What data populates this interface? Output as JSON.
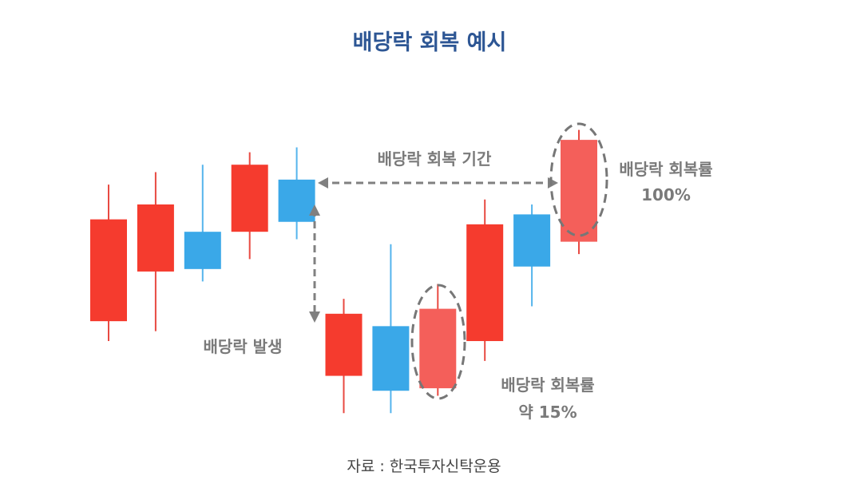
{
  "chart_data": {
    "type": "candlestick",
    "title": "배당락 회복 예시",
    "xlabel": "",
    "ylabel": "",
    "ylim": [
      0,
      100
    ],
    "grid": false,
    "colors": {
      "up": "#f53b2e",
      "down": "#3aa8e8",
      "highlight": "#f45f5a",
      "wick_up": "#e84a42",
      "wick_down": "#55b4ec",
      "annotation": "#808080",
      "title": "#2d5694"
    },
    "candles": [
      {
        "open": 26,
        "close": 67,
        "high": 81,
        "low": 18,
        "direction": "up"
      },
      {
        "open": 46,
        "close": 73,
        "high": 86,
        "low": 22,
        "direction": "up"
      },
      {
        "open": 62,
        "close": 47,
        "high": 89,
        "low": 42,
        "direction": "down"
      },
      {
        "open": 62,
        "close": 89,
        "high": 94,
        "low": 51,
        "direction": "up"
      },
      {
        "open": 83,
        "close": 66,
        "high": 96,
        "low": 59,
        "direction": "down"
      },
      {
        "open": 4,
        "close": 29,
        "high": 35,
        "low": -11,
        "direction": "up"
      },
      {
        "open": 24,
        "close": -2,
        "high": 57,
        "low": -11,
        "direction": "down"
      },
      {
        "open": -1,
        "close": 31,
        "high": 41,
        "low": -4,
        "direction": "up",
        "highlighted": true
      },
      {
        "open": 18,
        "close": 65,
        "high": 75,
        "low": 10,
        "direction": "up"
      },
      {
        "open": 69,
        "close": 48,
        "high": 73,
        "low": 32,
        "direction": "down"
      },
      {
        "open": 58,
        "close": 99,
        "high": 103,
        "low": 53,
        "direction": "up",
        "highlighted": true
      }
    ],
    "annotations": {
      "recovery_period": "배당락 회복 기간",
      "ex_dividend_occurs": "배당락 발생",
      "recovery_rate_full": [
        "배당락 회복률",
        "100%"
      ],
      "recovery_rate_partial": [
        "배당락 회복률",
        "약 15%"
      ]
    },
    "source": "자료 : 한국투자신탁운용"
  }
}
